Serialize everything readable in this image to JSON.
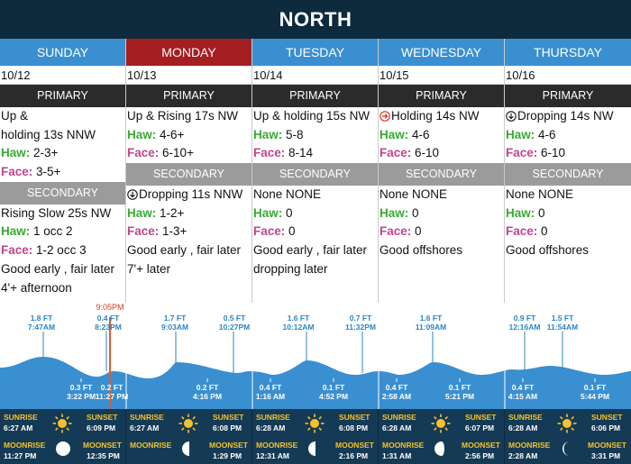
{
  "title": "NORTH",
  "days": [
    {
      "name": "SUNDAY",
      "date": "10/12",
      "today": false,
      "primary_label": "PRIMARY",
      "secondary_label": "SECONDARY",
      "primary": {
        "swell_a": "Up &",
        "swell_b": "holding 13s NNW",
        "haw": "2-3+",
        "face": "3-5+"
      },
      "secondary": {
        "swell": "Rising Slow 25s NW",
        "haw": "1 occ 2",
        "face": "1-2 occ 3"
      },
      "notes": [
        "Good early , fair later",
        "4'+ afternoon"
      ]
    },
    {
      "name": "MONDAY",
      "date": "10/13",
      "today": true,
      "primary_label": "PRIMARY",
      "secondary_label": "SECONDARY",
      "primary": {
        "swell": "Up & Rising 17s NW",
        "haw": "4-6+",
        "face": "6-10+"
      },
      "secondary": {
        "swell": "Dropping 11s NNW",
        "icon": "down-arrow-icon",
        "haw": "1-2+",
        "face": "1-3+"
      },
      "notes": [
        "Good early , fair later",
        "7'+ later"
      ]
    },
    {
      "name": "TUESDAY",
      "date": "10/14",
      "today": false,
      "primary_label": "PRIMARY",
      "secondary_label": "SECONDARY",
      "primary": {
        "swell": "Up & holding 15s NW",
        "haw": "5-8",
        "face": "8-14"
      },
      "secondary": {
        "swell": "None  NONE",
        "haw": "0",
        "face": "0"
      },
      "notes": [
        "Good early , fair later",
        "dropping later"
      ]
    },
    {
      "name": "WEDNESDAY",
      "date": "10/15",
      "today": false,
      "primary_label": "PRIMARY",
      "secondary_label": "SECONDARY",
      "primary": {
        "swell": "Holding 14s NW",
        "icon": "right-arrow-icon",
        "haw": "4-6",
        "face": "6-10"
      },
      "secondary": {
        "swell": "None  NONE",
        "haw": "0",
        "face": "0"
      },
      "notes": [
        "Good offshores"
      ]
    },
    {
      "name": "THURSDAY",
      "date": "10/16",
      "today": false,
      "primary_label": "PRIMARY",
      "secondary_label": "SECONDARY",
      "primary": {
        "swell": "Dropping 14s NW",
        "icon": "down-arrow-icon",
        "haw": "4-6",
        "face": "6-10"
      },
      "secondary": {
        "swell": "None  NONE",
        "haw": "0",
        "face": "0"
      },
      "notes": [
        "Good offshores"
      ]
    }
  ],
  "labels": {
    "haw": "Haw:",
    "face": "Face:",
    "sunrise": "SUNRISE",
    "sunset": "SUNSET",
    "moonrise": "MOONRISE",
    "moonset": "MOONSET"
  },
  "tides": {
    "now_label": "9:05PM",
    "highs": [
      {
        "ft": "1.8 FT",
        "time": "7:47AM"
      },
      {
        "ft": "0.4 FT",
        "time": "8:23PM"
      },
      {
        "ft": "1.7 FT",
        "time": "9:03AM"
      },
      {
        "ft": "0.5 FT",
        "time": "10:27PM"
      },
      {
        "ft": "1.6 FT",
        "time": "10:12AM"
      },
      {
        "ft": "0.7 FT",
        "time": "11:32PM"
      },
      {
        "ft": "1.6 FT",
        "time": "11:09AM"
      },
      {
        "ft": "0.9 FT",
        "time": "12:16AM"
      },
      {
        "ft": "1.5 FT",
        "time": "11:54AM"
      }
    ],
    "lows": [
      {
        "ft": "0.3 FT",
        "time": "3:22 PM"
      },
      {
        "ft": "0.2 FT",
        "time": "11:27 PM"
      },
      {
        "ft": "0.2 FT",
        "time": "4:16 PM"
      },
      {
        "ft": "0.4 FT",
        "time": "1:16 AM"
      },
      {
        "ft": "0.1 FT",
        "time": "4:52 PM"
      },
      {
        "ft": "0.4 FT",
        "time": "2:58 AM"
      },
      {
        "ft": "0.1 FT",
        "time": "5:21 PM"
      },
      {
        "ft": "0.4 FT",
        "time": "4:15 AM"
      },
      {
        "ft": "0.1 FT",
        "time": "5:44 PM"
      }
    ]
  },
  "sun_moon": [
    {
      "sunrise": "6:27 AM",
      "sunset": "6:09 PM",
      "moonrise": "11:27 PM",
      "moonset": "12:35 PM",
      "moon_icon": "waning-gibbous-icon"
    },
    {
      "sunrise": "6:27 AM",
      "sunset": "6:08 PM",
      "moonrise": "",
      "moonset": "1:29 PM",
      "moon_icon": "last-quarter-icon"
    },
    {
      "sunrise": "6:28 AM",
      "sunset": "6:08 PM",
      "moonrise": "12:31 AM",
      "moonset": "2:16 PM",
      "moon_icon": "last-quarter-icon"
    },
    {
      "sunrise": "6:28 AM",
      "sunset": "6:07 PM",
      "moonrise": "1:31 AM",
      "moonset": "2:56 PM",
      "moon_icon": "last-quarter-icon"
    },
    {
      "sunrise": "6:28 AM",
      "sunset": "6:06 PM",
      "moonrise": "2:28 AM",
      "moonset": "3:31 PM",
      "moon_icon": "waning-crescent-icon"
    }
  ],
  "colors": {
    "header": "#0e2a3d",
    "day": "#3a8fd1",
    "today": "#a51e22",
    "haw": "#3aa935",
    "face": "#c2458c",
    "tide": "#2a86c6",
    "sunrow": "#153a55",
    "sun_label": "#f2c230"
  }
}
